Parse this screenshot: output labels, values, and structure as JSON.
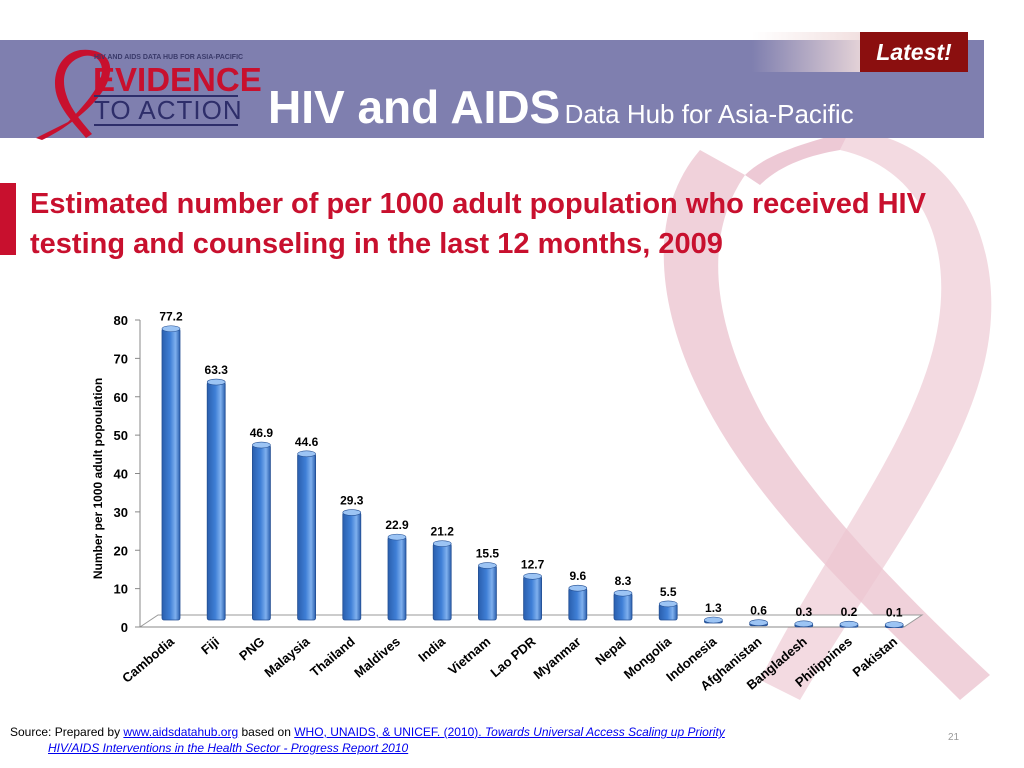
{
  "header": {
    "logo_small_text": "HIV AND AIDS DATA HUB FOR ASIA-PACIFIC",
    "logo_evidence": "EVIDENCE",
    "logo_action": "TO ACTION",
    "title_main": "HIV and AIDS",
    "title_sub": "Data Hub for Asia-Pacific",
    "latest_label": "Latest!"
  },
  "slide": {
    "title": "Estimated number of per 1000 adult population who received HIV testing and counseling in the last 12 months, 2009",
    "page_number": "21"
  },
  "source": {
    "prefix": "Source:  Prepared by",
    "link1": "www.aidsdatahub.org",
    "mid": "based on",
    "link2": "WHO, UNAIDS, & UNICEF. (2010). ",
    "link2_italic": "Towards Universal Access Scaling up Priority",
    "line2": "HIV/AIDS Interventions in the Health Sector - Progress Report 2010"
  },
  "colors": {
    "header_band": "#7f7faf",
    "title_red": "#c8102e",
    "bar_blue": "#3f7fd6",
    "latest_bg": "#8b0f0f"
  },
  "chart_data": {
    "type": "bar",
    "title": "",
    "xlabel": "",
    "ylabel": "Number per 1000 adult popoulation",
    "ylim": [
      0,
      80
    ],
    "yticks": [
      0,
      10,
      20,
      30,
      40,
      50,
      60,
      70,
      80
    ],
    "grid": false,
    "categories": [
      "Cambodia",
      "Fiji",
      "PNG",
      "Malaysia",
      "Thailand",
      "Maldives",
      "India",
      "Vietnam",
      "Lao PDR",
      "Myanmar",
      "Nepal",
      "Mongolia",
      "Indonesia",
      "Afghanistan",
      "Bangladesh",
      "Philippines",
      "Pakistan"
    ],
    "values": [
      77.2,
      63.3,
      46.9,
      44.6,
      29.3,
      22.9,
      21.2,
      15.5,
      12.7,
      9.6,
      8.3,
      5.5,
      1.3,
      0.6,
      0.3,
      0.2,
      0.1
    ],
    "data_labels": [
      "77.2",
      "63.3",
      "46.9",
      "44.6",
      "29.3",
      "22.9",
      "21.2",
      "15.5",
      "12.7",
      "9.6",
      "8.3",
      "5.5",
      "1.3",
      "0.6",
      "0.3",
      "0.2",
      "0.1"
    ]
  }
}
